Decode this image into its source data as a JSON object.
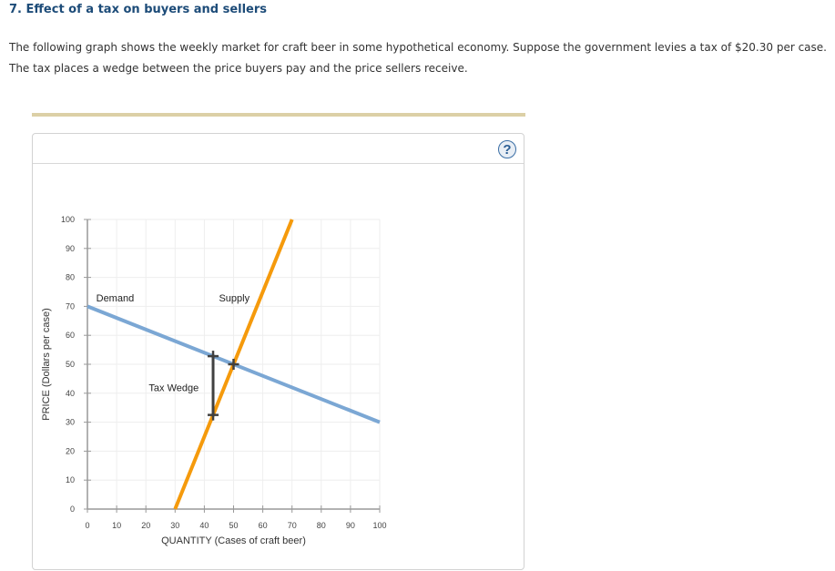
{
  "question": {
    "title": "7. Effect of a tax on buyers and sellers",
    "line1": "The following graph shows the weekly market for craft beer in some hypothetical economy. Suppose the government levies a tax of $20.30 per case.",
    "line2": "The tax places a wedge between the price buyers pay and the price sellers receive."
  },
  "graph": {
    "help_label": "?",
    "help_icon": "question-circle-icon"
  },
  "chart_data": {
    "type": "line",
    "title": "",
    "xlabel": "QUANTITY (Cases of craft beer)",
    "ylabel": "PRICE (Dollars per case)",
    "xlim": [
      0,
      100
    ],
    "ylim": [
      0,
      100
    ],
    "x_ticks": [
      0,
      10,
      20,
      30,
      40,
      50,
      60,
      70,
      80,
      90,
      100
    ],
    "y_ticks": [
      0,
      10,
      20,
      30,
      40,
      50,
      60,
      70,
      80,
      90,
      100
    ],
    "grid": true,
    "series": [
      {
        "name": "Demand",
        "color": "#7ba7d4",
        "points": [
          [
            0,
            70
          ],
          [
            100,
            30
          ]
        ]
      },
      {
        "name": "Supply",
        "color": "#f59a0c",
        "points": [
          [
            30,
            0
          ],
          [
            70,
            100
          ]
        ]
      }
    ],
    "annotations": [
      {
        "label": "Demand",
        "x": 3,
        "y": 73
      },
      {
        "label": "Supply",
        "x": 45,
        "y": 73
      },
      {
        "label": "Tax Wedge",
        "x": 21,
        "y": 42
      }
    ],
    "tax_wedge": {
      "quantity": 43,
      "buyer_price": 52.8,
      "seller_price": 32.5,
      "tax": 20.3,
      "color": "#404040"
    },
    "equilibrium_marker": {
      "quantity": 50,
      "price": 50
    }
  }
}
